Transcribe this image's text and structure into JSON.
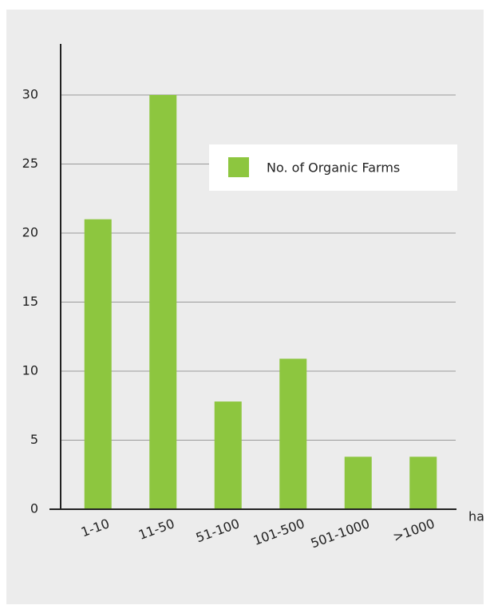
{
  "chart_data": {
    "type": "bar",
    "x_label": "ha",
    "legend_label": "No. of Organic Farms",
    "categories": [
      "1-10",
      "11-50",
      "51-100",
      "101-500",
      "501-1000",
      ">1000"
    ],
    "values": [
      21,
      30,
      7.8,
      10.9,
      3.8,
      3.8
    ],
    "color": "#8dc63f",
    "ylim": [
      0,
      33.7
    ],
    "yticks": [
      0,
      5,
      10,
      15,
      20,
      25,
      30
    ],
    "grid": true,
    "legend": "top-right"
  }
}
